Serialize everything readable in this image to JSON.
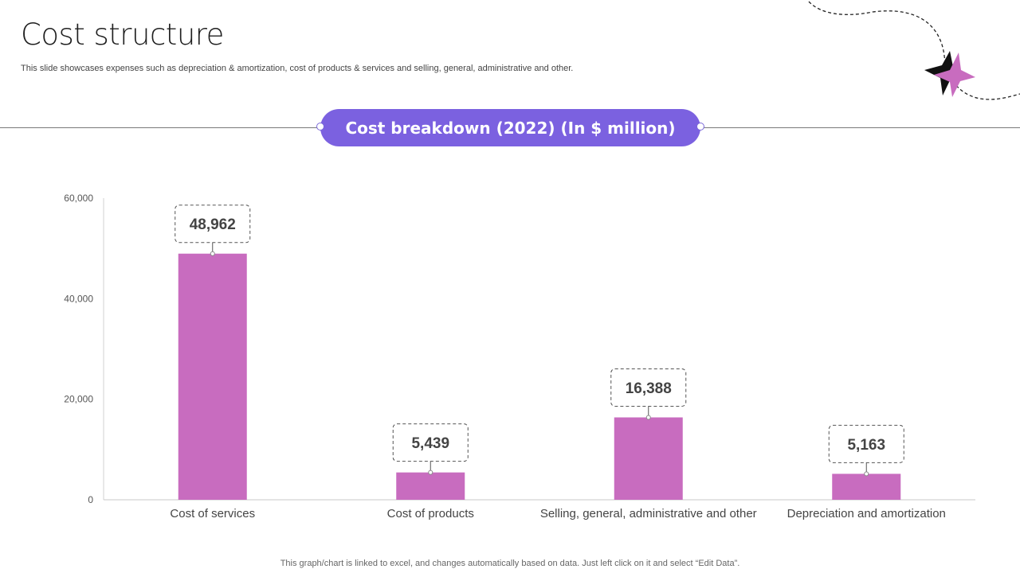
{
  "page": {
    "title": "Cost structure",
    "subtitle": "This slide showcases expenses such as depreciation & amortization, cost of products & services and selling, general, administrative and other.",
    "footer": "This graph/chart is linked to excel,  and changes automatically based on data. Just left click on it and select “Edit Data”."
  },
  "colors": {
    "bar": "#c86cbf",
    "pill": "#7b61e0",
    "star_dark": "#111111",
    "star_accent": "#c86cbf"
  },
  "chart_data": {
    "type": "bar",
    "title": "Cost breakdown (2022) (In $ million)",
    "categories": [
      "Cost of services",
      "Cost of products",
      "Selling, general, administrative and other",
      "Depreciation and amortization"
    ],
    "values": [
      48962,
      5439,
      16388,
      5163
    ],
    "data_labels": [
      "48,962",
      "5,439",
      "16,388",
      "5,163"
    ],
    "ylim": [
      0,
      60000
    ],
    "yticks": [
      0,
      20000,
      40000,
      60000
    ],
    "ytick_labels": [
      "0",
      "20,000",
      "40,000",
      "60,000"
    ],
    "grid": false,
    "legend": "none"
  }
}
